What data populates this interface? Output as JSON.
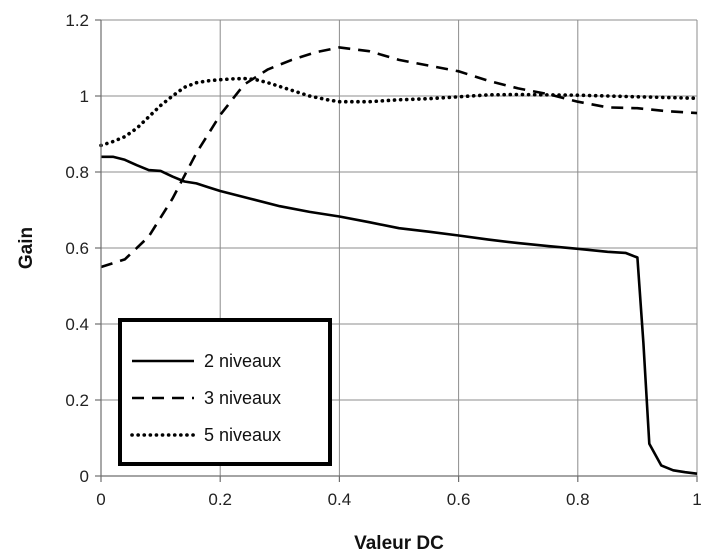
{
  "chart_data": {
    "type": "line",
    "title": "",
    "xlabel": "Valeur DC",
    "ylabel": "Gain",
    "xlim": [
      0,
      1
    ],
    "ylim": [
      0,
      1.2
    ],
    "xticks": [
      0,
      0.2,
      0.4,
      0.6,
      0.8,
      1
    ],
    "yticks": [
      0,
      0.2,
      0.4,
      0.6,
      0.8,
      1,
      1.2
    ],
    "xtick_labels": [
      "0",
      "0.2",
      "0.4",
      "0.6",
      "0.8",
      "1"
    ],
    "ytick_labels": [
      "0",
      "0.2",
      "0.4",
      "0.6",
      "0.8",
      "1",
      "1.2"
    ],
    "grid": true,
    "legend_position": "bottom-left",
    "series": [
      {
        "name": "2 niveaux",
        "style": "solid",
        "x": [
          0,
          0.02,
          0.04,
          0.06,
          0.08,
          0.1,
          0.12,
          0.14,
          0.16,
          0.18,
          0.2,
          0.25,
          0.3,
          0.35,
          0.4,
          0.45,
          0.5,
          0.55,
          0.6,
          0.65,
          0.7,
          0.75,
          0.8,
          0.85,
          0.88,
          0.9,
          0.91,
          0.92,
          0.94,
          0.96,
          0.98,
          1
        ],
        "y": [
          0.84,
          0.84,
          0.832,
          0.818,
          0.805,
          0.803,
          0.788,
          0.775,
          0.77,
          0.76,
          0.75,
          0.73,
          0.71,
          0.695,
          0.683,
          0.668,
          0.652,
          0.643,
          0.633,
          0.622,
          0.613,
          0.605,
          0.598,
          0.59,
          0.587,
          0.575,
          0.35,
          0.085,
          0.028,
          0.015,
          0.01,
          0.006
        ]
      },
      {
        "name": "3 niveaux",
        "style": "dashed",
        "x": [
          0,
          0.04,
          0.08,
          0.12,
          0.16,
          0.2,
          0.24,
          0.28,
          0.32,
          0.36,
          0.4,
          0.45,
          0.5,
          0.55,
          0.6,
          0.65,
          0.7,
          0.75,
          0.8,
          0.85,
          0.9,
          0.95,
          1
        ],
        "y": [
          0.55,
          0.57,
          0.63,
          0.73,
          0.85,
          0.95,
          1.03,
          1.07,
          1.095,
          1.115,
          1.128,
          1.118,
          1.095,
          1.08,
          1.065,
          1.04,
          1.02,
          1.005,
          0.985,
          0.97,
          0.968,
          0.96,
          0.955
        ]
      },
      {
        "name": "5 niveaux",
        "style": "dotted",
        "x": [
          0,
          0.02,
          0.04,
          0.06,
          0.08,
          0.1,
          0.12,
          0.14,
          0.16,
          0.18,
          0.2,
          0.22,
          0.24,
          0.26,
          0.28,
          0.3,
          0.32,
          0.35,
          0.38,
          0.4,
          0.45,
          0.5,
          0.55,
          0.6,
          0.65,
          0.7,
          0.75,
          0.8,
          0.85,
          0.9,
          0.95,
          1
        ],
        "y": [
          0.87,
          0.88,
          0.893,
          0.915,
          0.945,
          0.975,
          1.0,
          1.023,
          1.035,
          1.04,
          1.043,
          1.045,
          1.046,
          1.043,
          1.035,
          1.025,
          1.015,
          1.0,
          0.99,
          0.985,
          0.985,
          0.99,
          0.993,
          0.998,
          1.003,
          1.004,
          1.003,
          1.002,
          1.0,
          0.998,
          0.996,
          0.994
        ]
      }
    ]
  }
}
